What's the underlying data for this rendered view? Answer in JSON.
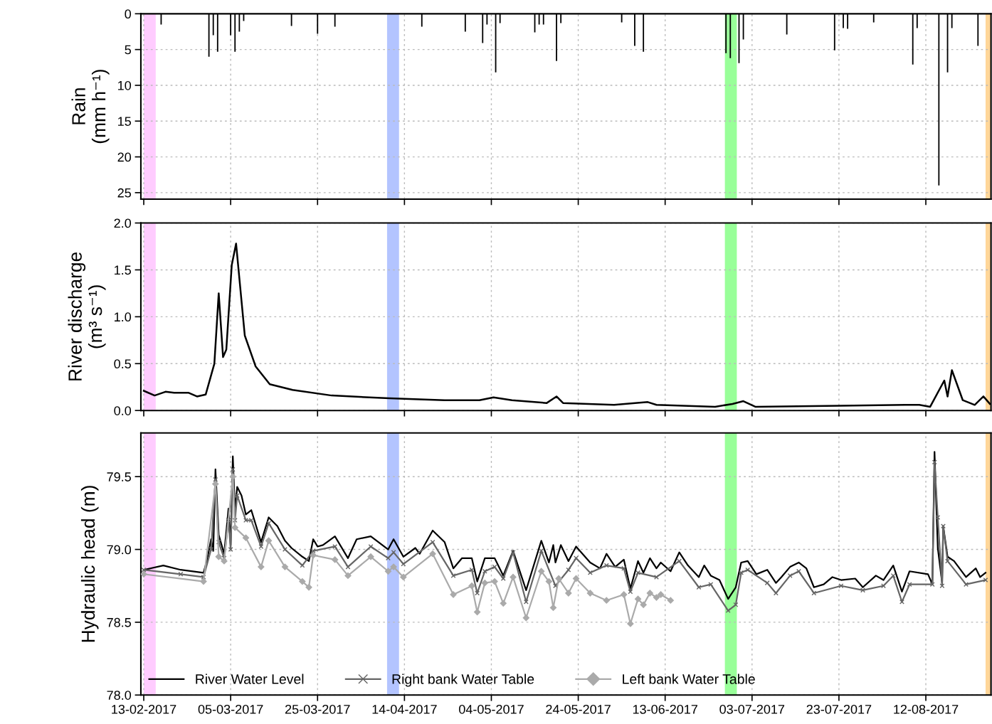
{
  "chart_data": [
    {
      "type": "bar",
      "ylabel": "Rain\n(mm h⁻¹)",
      "xlim": [
        "2017-02-12T08:00",
        "2017-08-27"
      ],
      "ylim": [
        25.9,
        0
      ],
      "yticks": [
        0,
        5,
        10,
        15,
        20,
        25
      ],
      "xticks": [
        {
          "value": "2017-02-13",
          "label": null
        },
        {
          "value": "2017-03-05",
          "label": null
        },
        {
          "value": "2017-03-25",
          "label": null
        },
        {
          "value": "2017-04-14",
          "label": null
        },
        {
          "value": "2017-05-04",
          "label": null
        },
        {
          "value": "2017-05-24",
          "label": null
        },
        {
          "value": "2017-06-13",
          "label": null
        },
        {
          "value": "2017-07-03",
          "label": null
        },
        {
          "value": "2017-07-23",
          "label": null
        },
        {
          "value": "2017-08-12",
          "label": null
        }
      ],
      "tick_labels": "y",
      "grid": true,
      "bands": [
        {
          "axis": "x",
          "from": "2017-02-13",
          "to": "2017-02-15T18:00",
          "color": "#ffccff"
        },
        {
          "axis": "x",
          "from": "2017-04-10",
          "to": "2017-04-12T18:00",
          "color": "#b3c4ff"
        },
        {
          "axis": "x",
          "from": "2017-06-26T18:00",
          "to": "2017-06-29T12:00",
          "color": "#99ff99"
        },
        {
          "axis": "x",
          "from": "2017-08-25T18:00",
          "to": "2017-08-27",
          "color": "#ffd699"
        }
      ],
      "series": [
        {
          "color": "#000000",
          "x": [
            "2017-02-17",
            "2017-02-28",
            "2017-03-01",
            "2017-03-02",
            "2017-03-05",
            "2017-03-06",
            "2017-03-07",
            "2017-03-08",
            "2017-03-19",
            "2017-03-25",
            "2017-03-29",
            "2017-04-18",
            "2017-04-28",
            "2017-05-02",
            "2017-05-03",
            "2017-05-05",
            "2017-05-06",
            "2017-05-14",
            "2017-05-15",
            "2017-05-16",
            "2017-05-19",
            "2017-05-20",
            "2017-06-03",
            "2017-06-06",
            "2017-06-08",
            "2017-06-27",
            "2017-06-28",
            "2017-06-30",
            "2017-07-01",
            "2017-07-11",
            "2017-07-22",
            "2017-07-24",
            "2017-07-25",
            "2017-07-31",
            "2017-08-09",
            "2017-08-10",
            "2017-08-15",
            "2017-08-17",
            "2017-08-18",
            "2017-08-24"
          ],
          "values": [
            1.5,
            6.0,
            3.0,
            5.3,
            3.0,
            5.3,
            2.5,
            1.0,
            1.7,
            2.8,
            1.8,
            1.8,
            2.5,
            4.1,
            1.5,
            8.2,
            1.3,
            2.6,
            1.5,
            1.5,
            6.6,
            1.3,
            1.2,
            4.5,
            5.3,
            5.5,
            6.2,
            6.9,
            3.6,
            2.9,
            5.1,
            2.0,
            2.1,
            1.2,
            7.1,
            2.0,
            24.0,
            8.2,
            2.0,
            4.5
          ]
        }
      ]
    },
    {
      "type": "line",
      "ylabel": "River discharge\n(m³ s⁻¹)",
      "xlim": [
        "2017-02-12T08:00",
        "2017-08-27"
      ],
      "ylim": [
        0,
        2
      ],
      "yticks": [
        {
          "value": 0,
          "label": "0.0"
        },
        0.5,
        {
          "value": 1,
          "label": "1.0"
        },
        1.5,
        {
          "value": 2,
          "label": "2.0"
        }
      ],
      "xticks": [
        {
          "value": "2017-02-13",
          "label": null
        },
        {
          "value": "2017-03-05",
          "label": null
        },
        {
          "value": "2017-03-25",
          "label": null
        },
        {
          "value": "2017-04-14",
          "label": null
        },
        {
          "value": "2017-05-04",
          "label": null
        },
        {
          "value": "2017-05-24",
          "label": null
        },
        {
          "value": "2017-06-13",
          "label": null
        },
        {
          "value": "2017-07-03",
          "label": null
        },
        {
          "value": "2017-07-23",
          "label": null
        },
        {
          "value": "2017-08-12",
          "label": null
        }
      ],
      "tick_labels": "y",
      "grid": true,
      "bands": [
        {
          "axis": "x",
          "from": "2017-02-13",
          "to": "2017-02-15T18:00",
          "color": "#ffccff"
        },
        {
          "axis": "x",
          "from": "2017-04-10",
          "to": "2017-04-12T18:00",
          "color": "#b3c4ff"
        },
        {
          "axis": "x",
          "from": "2017-06-26T18:00",
          "to": "2017-06-29T12:00",
          "color": "#99ff99"
        },
        {
          "axis": "x",
          "from": "2017-08-25T18:00",
          "to": "2017-08-27",
          "color": "#ffd699"
        }
      ],
      "series": [
        {
          "color": "#000000",
          "x": [
            "2017-02-13",
            "2017-02-15T12:00",
            "2017-02-18",
            "2017-02-20",
            "2017-02-23T06:00",
            "2017-02-25T06:00",
            "2017-02-27T06:00",
            "2017-03-01T06:00",
            "2017-03-02T06:00",
            "2017-03-03T06:00",
            "2017-03-04",
            "2017-03-05T06:00",
            "2017-03-06T06:00",
            "2017-03-08T06:00",
            "2017-03-10T18:00",
            "2017-03-14",
            "2017-03-19T06:00",
            "2017-03-28T06:00",
            "2017-04-10T12:00",
            "2017-04-23T06:00",
            "2017-05-01T06:00",
            "2017-05-04T12:00",
            "2017-05-08T18:00",
            "2017-05-16T18:00",
            "2017-05-19",
            "2017-05-20T12:00",
            "2017-06-01T06:00",
            "2017-06-09",
            "2017-06-11",
            "2017-06-24T12:00",
            "2017-06-28T12:00",
            "2017-07-01",
            "2017-07-03T18:00",
            "2017-07-23T06:00",
            "2017-08-07T18:00",
            "2017-08-10T12:00",
            "2017-08-13",
            "2017-08-16T06:00",
            "2017-08-17",
            "2017-08-18",
            "2017-08-20T12:00",
            "2017-08-23T06:00",
            "2017-08-25T06:00",
            "2017-08-26T18:00"
          ],
          "values": [
            0.21,
            0.16,
            0.2,
            0.19,
            0.19,
            0.15,
            0.17,
            0.5,
            1.25,
            0.57,
            0.65,
            1.55,
            1.78,
            0.8,
            0.47,
            0.28,
            0.22,
            0.16,
            0.13,
            0.11,
            0.11,
            0.14,
            0.11,
            0.08,
            0.15,
            0.08,
            0.06,
            0.09,
            0.06,
            0.04,
            0.07,
            0.1,
            0.04,
            0.05,
            0.06,
            0.06,
            0.04,
            0.32,
            0.15,
            0.43,
            0.11,
            0.06,
            0.15,
            0.07
          ]
        }
      ]
    },
    {
      "type": "line",
      "ylabel": "Hydraulic head (m)",
      "xlim": [
        "2017-02-12T08:00",
        "2017-08-27"
      ],
      "ylim": [
        78.0,
        79.8
      ],
      "yticks": [
        {
          "value": 78,
          "label": "78.0"
        },
        78.5,
        {
          "value": 79,
          "label": "79.0"
        },
        79.5
      ],
      "xticks": [
        {
          "value": "2017-02-13",
          "label": "13-02-2017"
        },
        {
          "value": "2017-03-05",
          "label": "05-03-2017"
        },
        {
          "value": "2017-03-25",
          "label": "25-03-2017"
        },
        {
          "value": "2017-04-14",
          "label": "14-04-2017"
        },
        {
          "value": "2017-05-04",
          "label": "04-05-2017"
        },
        {
          "value": "2017-05-24",
          "label": "24-05-2017"
        },
        {
          "value": "2017-06-13",
          "label": "13-06-2017"
        },
        {
          "value": "2017-07-03",
          "label": "03-07-2017"
        },
        {
          "value": "2017-07-23",
          "label": "23-07-2017"
        },
        {
          "value": "2017-08-12",
          "label": "12-08-2017"
        }
      ],
      "grid": true,
      "legend": "bottom left",
      "bands": [
        {
          "axis": "x",
          "from": "2017-02-13",
          "to": "2017-02-15T18:00",
          "color": "#ffccff"
        },
        {
          "axis": "x",
          "from": "2017-04-10",
          "to": "2017-04-12T18:00",
          "color": "#b3c4ff"
        },
        {
          "axis": "x",
          "from": "2017-06-26T18:00",
          "to": "2017-06-29T12:00",
          "color": "#99ff99"
        },
        {
          "axis": "x",
          "from": "2017-08-25T18:00",
          "to": "2017-08-27",
          "color": "#ffd699"
        }
      ],
      "series": [
        {
          "name": "River Water Level",
          "color": "#000000",
          "marker": "none",
          "x": [
            "2017-02-13",
            "2017-02-17T12:00",
            "2017-02-21T12:00",
            "2017-02-26T18:00",
            "2017-02-27T12:00",
            "2017-02-28T12:00",
            "2017-03-01",
            "2017-03-01T12:00",
            "2017-03-02T06:00",
            "2017-03-03T12:00",
            "2017-03-04T12:00",
            "2017-03-05",
            "2017-03-05T12:00",
            "2017-03-06",
            "2017-03-06T12:00",
            "2017-03-07T12:00",
            "2017-03-08T12:00",
            "2017-03-09T18:00",
            "2017-03-12",
            "2017-03-13T18:00",
            "2017-03-15T18:00",
            "2017-03-17T12:00",
            "2017-03-19",
            "2017-03-21T12:00",
            "2017-03-23",
            "2017-03-24",
            "2017-03-25",
            "2017-03-26T06:00",
            "2017-03-29",
            "2017-04-01",
            "2017-04-03",
            "2017-04-06T06:00",
            "2017-04-10T06:00",
            "2017-04-11T12:00",
            "2017-04-13T18:00",
            "2017-04-16T12:00",
            "2017-04-17T12:00",
            "2017-04-20T12:00",
            "2017-04-23T06:00",
            "2017-04-25T06:00",
            "2017-04-27T06:00",
            "2017-04-29T12:00",
            "2017-04-30T18:00",
            "2017-05-02T12:00",
            "2017-05-04T18:00",
            "2017-05-06T18:00",
            "2017-05-09",
            "2017-05-12",
            "2017-05-15T12:00",
            "2017-05-17T06:00",
            "2017-05-18T06:00",
            "2017-05-18T18:00",
            "2017-05-20",
            "2017-05-21T18:00",
            "2017-05-23T12:00",
            "2017-05-26T18:00",
            "2017-05-29",
            "2017-05-30T12:00",
            "2017-06-01T12:00",
            "2017-06-03T12:00",
            "2017-06-05",
            "2017-06-06T18:00",
            "2017-06-08",
            "2017-06-09T12:00",
            "2017-06-11",
            "2017-06-12",
            "2017-06-14T06:00",
            "2017-06-16T06:00",
            "2017-06-18T06:00",
            "2017-06-20T18:00",
            "2017-06-22",
            "2017-06-23T12:00",
            "2017-06-25T12:00",
            "2017-06-27T12:00",
            "2017-06-29T06:00",
            "2017-06-30T12:00",
            "2017-07-02",
            "2017-07-04",
            "2017-07-06T12:00",
            "2017-07-08T12:00",
            "2017-07-09T18:00",
            "2017-07-11T18:00",
            "2017-07-13T18:00",
            "2017-07-15T12:00",
            "2017-07-17T06:00",
            "2017-07-19T12:00",
            "2017-07-21T12:00",
            "2017-07-23T12:00",
            "2017-07-26T18:00",
            "2017-07-28T12:00",
            "2017-07-31T12:00",
            "2017-08-02T06:00",
            "2017-08-04T12:00",
            "2017-08-06T12:00",
            "2017-08-08T06:00",
            "2017-08-12T12:00",
            "2017-08-13T12:00",
            "2017-08-14",
            "2017-08-14T18:00",
            "2017-08-15T18:00",
            "2017-08-16",
            "2017-08-17",
            "2017-08-18T12:00",
            "2017-08-21T06:00",
            "2017-08-23T12:00",
            "2017-08-24T12:00",
            "2017-08-25T18:00"
          ],
          "values": [
            78.86,
            78.89,
            78.86,
            78.84,
            78.92,
            79.07,
            78.99,
            79.55,
            79.1,
            78.97,
            79.28,
            79.03,
            79.64,
            79.26,
            79.43,
            79.37,
            79.24,
            79.27,
            79.05,
            79.22,
            79.16,
            79.06,
            79.01,
            78.95,
            78.92,
            79.07,
            79.02,
            79.03,
            79.09,
            78.94,
            79.07,
            79.09,
            79.0,
            79.07,
            78.95,
            79.01,
            78.97,
            79.13,
            79.05,
            78.87,
            78.94,
            78.94,
            78.78,
            78.94,
            78.94,
            78.82,
            78.99,
            78.72,
            79.06,
            78.91,
            79.03,
            78.91,
            79.03,
            78.92,
            79.02,
            78.91,
            78.87,
            78.97,
            78.88,
            78.93,
            78.73,
            78.92,
            78.84,
            78.94,
            78.87,
            78.91,
            78.85,
            78.98,
            78.89,
            78.81,
            78.89,
            78.82,
            78.79,
            78.66,
            78.74,
            78.91,
            78.92,
            78.83,
            78.86,
            78.77,
            78.81,
            78.88,
            78.91,
            78.87,
            78.74,
            78.76,
            78.81,
            78.79,
            78.8,
            78.74,
            78.82,
            78.79,
            78.89,
            78.71,
            78.85,
            78.83,
            78.76,
            79.67,
            79.01,
            78.77,
            79.16,
            78.95,
            78.92,
            78.81,
            78.87,
            78.81,
            78.84
          ]
        },
        {
          "name": "Right bank Water Table",
          "color": "#666666",
          "marker": "cross",
          "x": [
            "2017-02-13",
            "2017-02-21T12:00",
            "2017-02-26T18:00",
            "2017-02-28T12:00",
            "2017-03-01T12:00",
            "2017-03-02T06:00",
            "2017-03-03T12:00",
            "2017-03-04T12:00",
            "2017-03-05",
            "2017-03-05T12:00",
            "2017-03-06",
            "2017-03-06T12:00",
            "2017-03-08T12:00",
            "2017-03-09T18:00",
            "2017-03-12",
            "2017-03-13T18:00",
            "2017-03-17T12:00",
            "2017-03-21T12:00",
            "2017-03-24",
            "2017-03-29",
            "2017-04-01",
            "2017-04-06T06:00",
            "2017-04-10T06:00",
            "2017-04-11T12:00",
            "2017-04-13T18:00",
            "2017-04-20T12:00",
            "2017-04-25T06:00",
            "2017-04-29T12:00",
            "2017-04-30T18:00",
            "2017-05-02T12:00",
            "2017-05-04T18:00",
            "2017-05-06T18:00",
            "2017-05-09",
            "2017-05-12",
            "2017-05-15T12:00",
            "2017-05-18T18:00",
            "2017-05-21T18:00",
            "2017-05-23T12:00",
            "2017-05-26T18:00",
            "2017-05-30T12:00",
            "2017-06-03T12:00",
            "2017-06-05",
            "2017-06-06T18:00",
            "2017-06-11",
            "2017-06-16T06:00",
            "2017-06-20T18:00",
            "2017-06-23T12:00",
            "2017-06-27T12:00",
            "2017-06-29T06:00",
            "2017-06-30T12:00",
            "2017-07-02",
            "2017-07-06T12:00",
            "2017-07-08T12:00",
            "2017-07-11T18:00",
            "2017-07-13T18:00",
            "2017-07-17T06:00",
            "2017-07-23T12:00",
            "2017-07-28T12:00",
            "2017-08-02T06:00",
            "2017-08-04T12:00",
            "2017-08-06T12:00",
            "2017-08-08T06:00",
            "2017-08-13T12:00",
            "2017-08-14",
            "2017-08-14T18:00",
            "2017-08-15T18:00",
            "2017-08-16",
            "2017-08-17",
            "2017-08-21T06:00",
            "2017-08-25T18:00"
          ],
          "values": [
            78.86,
            78.83,
            78.81,
            79.0,
            79.48,
            79.05,
            78.94,
            79.2,
            79.0,
            79.55,
            79.2,
            79.37,
            79.2,
            79.2,
            79.02,
            79.18,
            79.0,
            78.89,
            78.99,
            79.02,
            78.88,
            79.02,
            78.94,
            78.98,
            78.9,
            79.05,
            78.82,
            78.86,
            78.7,
            78.85,
            78.88,
            78.8,
            78.98,
            78.64,
            78.99,
            78.75,
            78.86,
            78.94,
            78.84,
            78.89,
            78.87,
            78.71,
            78.84,
            78.81,
            78.92,
            78.74,
            78.76,
            78.58,
            78.62,
            78.84,
            78.86,
            78.77,
            78.7,
            78.82,
            78.85,
            78.7,
            78.75,
            78.72,
            78.75,
            78.82,
            78.64,
            78.76,
            78.76,
            79.6,
            79.22,
            78.75,
            79.16,
            78.92,
            78.76,
            78.79
          ]
        },
        {
          "name": "Left bank Water Table",
          "color": "#aaaaaa",
          "marker": "diamond",
          "x": [
            "2017-02-13",
            "2017-02-26T18:00",
            "2017-03-01T12:00",
            "2017-03-02T06:00",
            "2017-03-03T12:00",
            "2017-03-05T12:00",
            "2017-03-06",
            "2017-03-08T12:00",
            "2017-03-12",
            "2017-03-13T18:00",
            "2017-03-17T12:00",
            "2017-03-21T12:00",
            "2017-03-23",
            "2017-03-24",
            "2017-03-29",
            "2017-04-01",
            "2017-04-06T06:00",
            "2017-04-10T06:00",
            "2017-04-11T12:00",
            "2017-04-13T18:00",
            "2017-04-20T12:00",
            "2017-04-25T06:00",
            "2017-04-29T12:00",
            "2017-04-30T18:00",
            "2017-05-02T12:00",
            "2017-05-04T18:00",
            "2017-05-06T18:00",
            "2017-05-09",
            "2017-05-12",
            "2017-05-15T12:00",
            "2017-05-17T06:00",
            "2017-05-18T06:00",
            "2017-05-19T12:00",
            "2017-05-21T18:00",
            "2017-05-23T12:00",
            "2017-05-26T18:00",
            "2017-05-30T12:00",
            "2017-06-03T12:00",
            "2017-06-05",
            "2017-06-06T18:00",
            "2017-06-08",
            "2017-06-09T12:00",
            "2017-06-11",
            "2017-06-12",
            "2017-06-14T06:00"
          ],
          "values": [
            78.83,
            78.78,
            79.45,
            78.95,
            78.92,
            79.5,
            79.15,
            79.08,
            78.88,
            79.06,
            78.88,
            78.78,
            78.74,
            78.96,
            78.93,
            78.82,
            78.95,
            78.85,
            78.88,
            78.81,
            78.97,
            78.69,
            78.75,
            78.57,
            78.77,
            78.78,
            78.63,
            78.81,
            78.53,
            78.85,
            78.78,
            78.6,
            78.8,
            78.7,
            78.8,
            78.7,
            78.65,
            78.69,
            78.49,
            78.66,
            78.62,
            78.7,
            78.67,
            78.69,
            78.65
          ]
        }
      ]
    }
  ]
}
